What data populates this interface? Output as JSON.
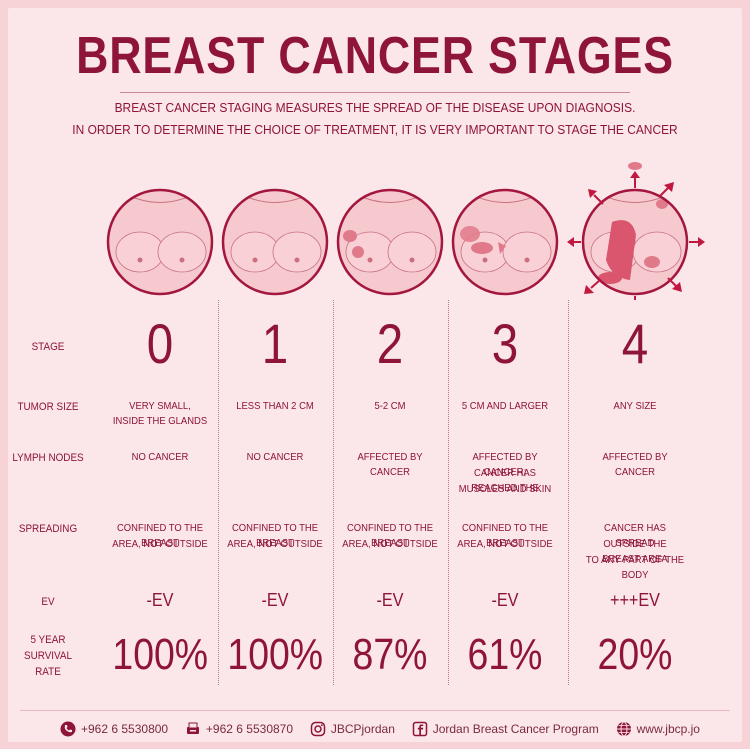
{
  "title": "BREAST CANCER STAGES",
  "subtitle_line1": "BREAST CANCER STAGING MEASURES THE SPREAD OF THE DISEASE UPON DIAGNOSIS.",
  "subtitle_line2": "IN ORDER TO DETERMINE THE CHOICE OF TREATMENT, IT IS VERY IMPORTANT TO STAGE THE CANCER",
  "row_labels": {
    "stage": "STAGE",
    "tumor_size": "TUMOR SIZE",
    "lymph_nodes": "LYMPH NODES",
    "spreading": "SPREADING",
    "ev": "EV",
    "survival_1": "5 YEAR",
    "survival_2": "SURVIVAL",
    "survival_3": "RATE"
  },
  "stages": [
    {
      "stage": "0",
      "tumor_size_1": "VERY SMALL,",
      "tumor_size_2": "INSIDE THE GLANDS",
      "lymph_1": "NO CANCER",
      "lymph_2": "",
      "lymph_3": "",
      "spread_1": "CONFINED TO THE BREAST",
      "spread_2": "AREA, NOT OUTSIDE",
      "spread_3": "",
      "ev": "-EV",
      "rate": "100%"
    },
    {
      "stage": "1",
      "tumor_size_1": "LESS THAN 2 CM",
      "tumor_size_2": "",
      "lymph_1": "NO CANCER",
      "lymph_2": "",
      "lymph_3": "",
      "spread_1": "CONFINED TO THE BREAST",
      "spread_2": "AREA, NOT OUTSIDE",
      "spread_3": "",
      "ev": "-EV",
      "rate": "100%"
    },
    {
      "stage": "2",
      "tumor_size_1": "5-2 CM",
      "tumor_size_2": "",
      "lymph_1": "AFFECTED BY CANCER",
      "lymph_2": "",
      "lymph_3": "",
      "spread_1": "CONFINED TO THE BREAST",
      "spread_2": "AREA, NOT OUTSIDE",
      "spread_3": "",
      "ev": "-EV",
      "rate": "87%"
    },
    {
      "stage": "3",
      "tumor_size_1": "5 CM AND LARGER",
      "tumor_size_2": "",
      "lymph_1": "AFFECTED BY CANCER;",
      "lymph_2": "CANCER HAS REACHED THE",
      "lymph_3": "MUSCLES AND SKIN",
      "spread_1": "CONFINED TO THE BREAST",
      "spread_2": "AREA, NOT OUTSIDE",
      "spread_3": "",
      "ev": "-EV",
      "rate": "61%"
    },
    {
      "stage": "4",
      "tumor_size_1": "ANY SIZE",
      "tumor_size_2": "",
      "lymph_1": "AFFECTED BY CANCER",
      "lymph_2": "",
      "lymph_3": "",
      "spread_1": "CANCER HAS SPREAD",
      "spread_2": "OUTSIDE THE BREAST AREA",
      "spread_3": "TO ANY PART OF THE BODY",
      "ev": "+++EV",
      "rate": "20%"
    }
  ],
  "footer": {
    "phone": "+962 6 5530800",
    "fax": "+962 6 5530870",
    "instagram": "JBCPjordan",
    "facebook": "Jordan Breast Cancer Program",
    "website": "www.jbcp.jo",
    "icons": [
      "phone-icon",
      "fax-icon",
      "instagram-icon",
      "facebook-icon",
      "globe-icon"
    ]
  },
  "colors": {
    "accent": "#8e1438",
    "background": "#fbe6ea",
    "skin": "#f6c9cf",
    "tumor": "#e07a8a"
  }
}
